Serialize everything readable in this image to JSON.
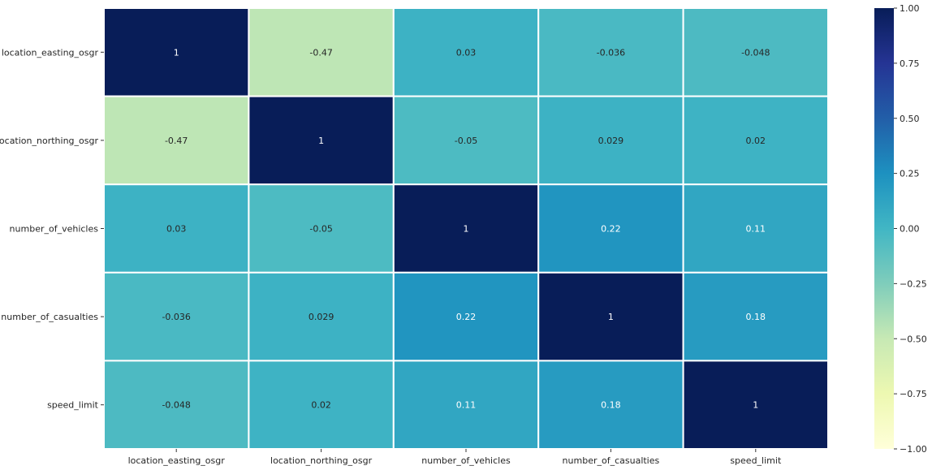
{
  "chart_data": {
    "type": "heatmap",
    "title": "",
    "xlabel": "",
    "ylabel": "",
    "x_categories": [
      "location_easting_osgr",
      "location_northing_osgr",
      "number_of_vehicles",
      "number_of_casualties",
      "speed_limit"
    ],
    "y_categories": [
      "location_easting_osgr",
      "location_northing_osgr",
      "number_of_vehicles",
      "number_of_casualties",
      "speed_limit"
    ],
    "values": [
      [
        1,
        -0.47,
        0.03,
        -0.036,
        -0.048
      ],
      [
        -0.47,
        1,
        -0.05,
        0.029,
        0.02
      ],
      [
        0.03,
        -0.05,
        1,
        0.22,
        0.11
      ],
      [
        -0.036,
        0.029,
        0.22,
        1,
        0.18
      ],
      [
        -0.048,
        0.02,
        0.11,
        0.18,
        1
      ]
    ],
    "value_labels": [
      [
        "1",
        "-0.47",
        "0.03",
        "-0.036",
        "-0.048"
      ],
      [
        "-0.47",
        "1",
        "-0.05",
        "0.029",
        "0.02"
      ],
      [
        "0.03",
        "-0.05",
        "1",
        "0.22",
        "0.11"
      ],
      [
        "-0.036",
        "0.029",
        "0.22",
        "1",
        "0.18"
      ],
      [
        "-0.048",
        "0.02",
        "0.11",
        "0.18",
        "1"
      ]
    ],
    "colorbar": {
      "range": [
        -1,
        1
      ],
      "ticks": [
        1.0,
        0.75,
        0.5,
        0.25,
        0.0,
        -0.25,
        -0.5,
        -0.75,
        -1.0
      ],
      "tick_labels": [
        "1.00",
        "0.75",
        "0.50",
        "0.25",
        "0.00",
        "−0.25",
        "−0.50",
        "−0.75",
        "−1.00"
      ],
      "colormap": "YlGnBu",
      "placement": "right"
    },
    "grid": false,
    "annotated": true
  }
}
